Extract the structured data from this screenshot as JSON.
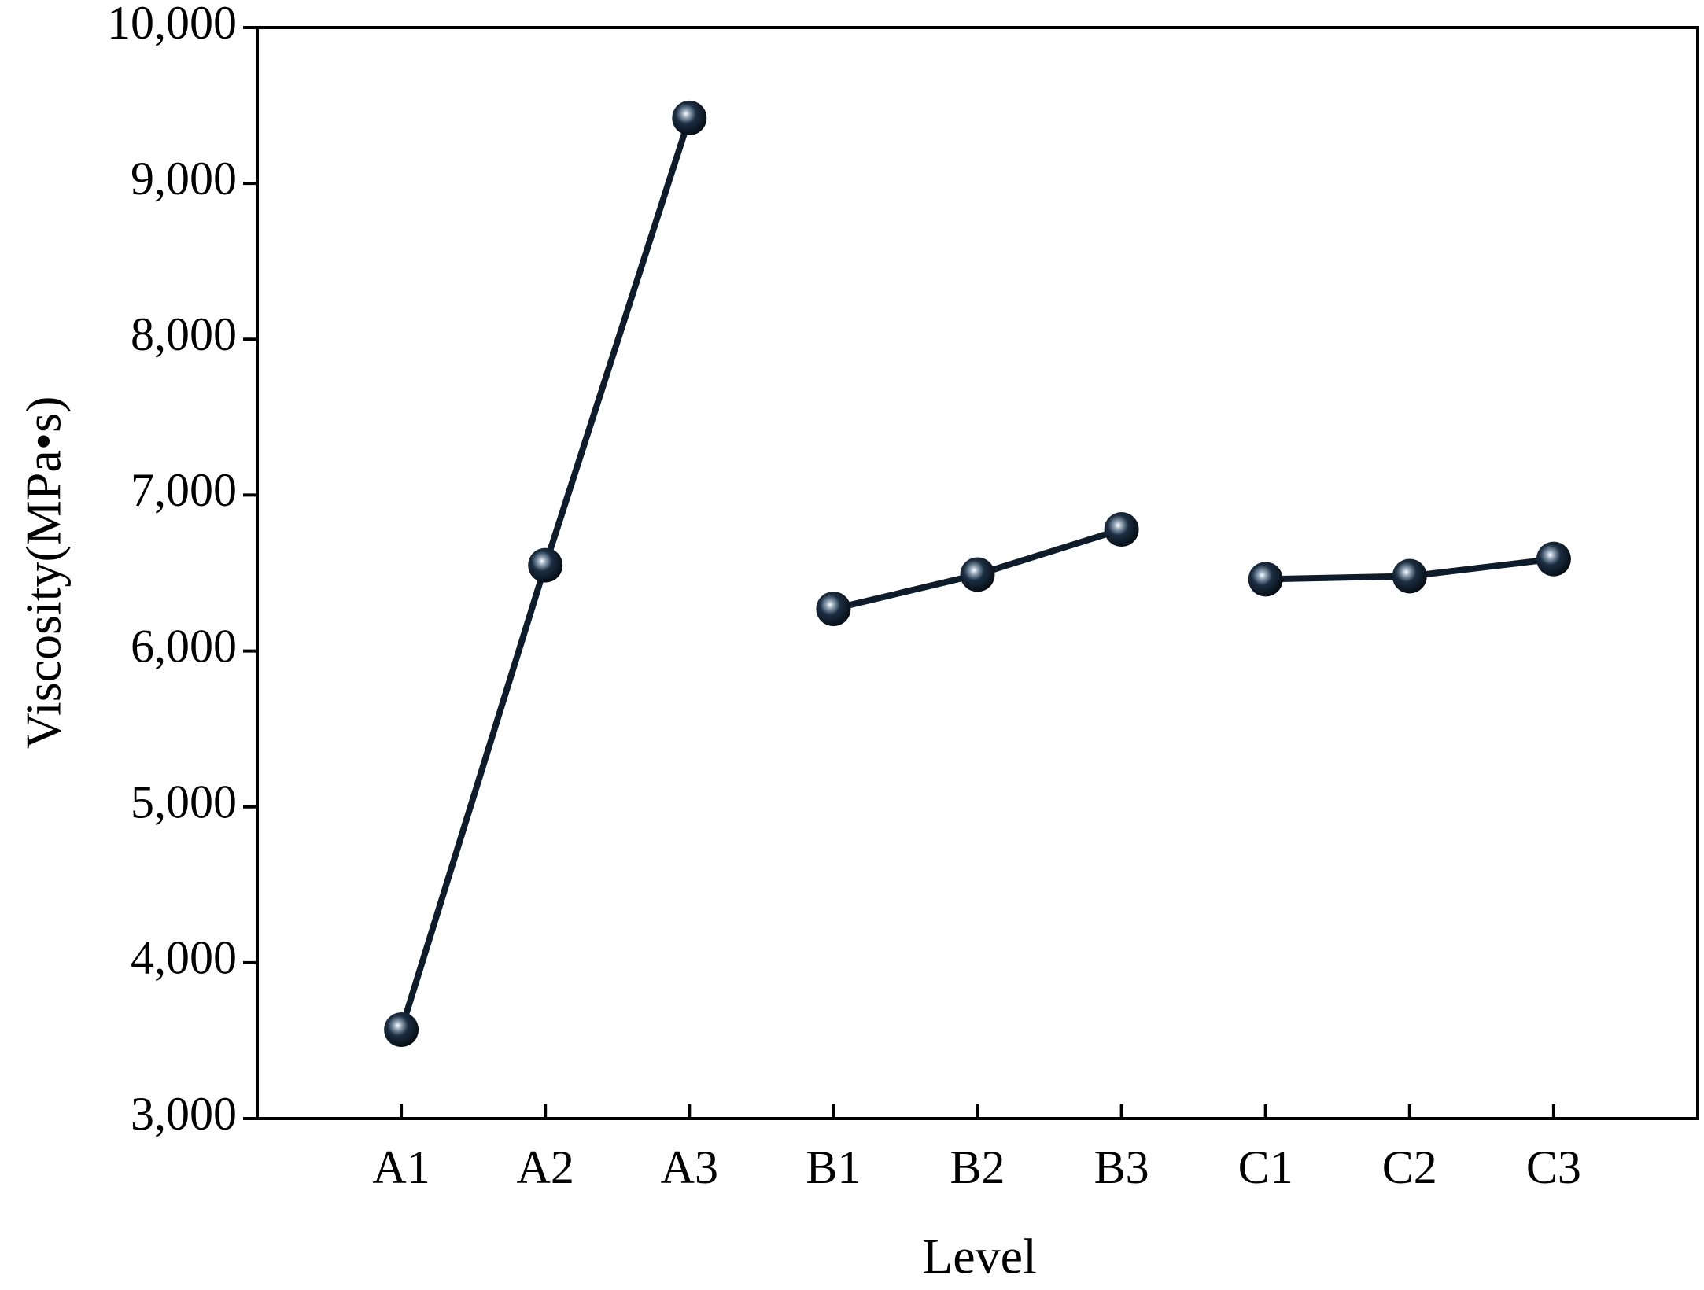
{
  "chart_data": {
    "type": "line",
    "x_label": "Level",
    "y_label": "Viscosity(MPa•s)",
    "categories": [
      "A1",
      "A2",
      "A3",
      "B1",
      "B2",
      "B3",
      "C1",
      "C2",
      "C3"
    ],
    "series": [
      {
        "color": "#0d1b2a",
        "values": [
          3570,
          6550,
          9420,
          null,
          null,
          null,
          null,
          null,
          null
        ]
      },
      {
        "color": "#0d1b2a",
        "values": [
          null,
          null,
          null,
          6270,
          6490,
          6780,
          null,
          null,
          null
        ]
      },
      {
        "color": "#0d1b2a",
        "values": [
          null,
          null,
          null,
          null,
          null,
          null,
          6460,
          6480,
          6590
        ]
      }
    ],
    "ylim": [
      3000,
      10000
    ],
    "yticks": [
      {
        "value": 3000,
        "label": "3,000"
      },
      {
        "value": 4000,
        "label": "4,000"
      },
      {
        "value": 5000,
        "label": "5,000"
      },
      {
        "value": 6000,
        "label": "6,000"
      },
      {
        "value": 7000,
        "label": "7,000"
      },
      {
        "value": 8000,
        "label": "8,000"
      },
      {
        "value": 9000,
        "label": "9,000"
      },
      {
        "value": 10000,
        "label": "10,000"
      }
    ],
    "grid": false
  }
}
